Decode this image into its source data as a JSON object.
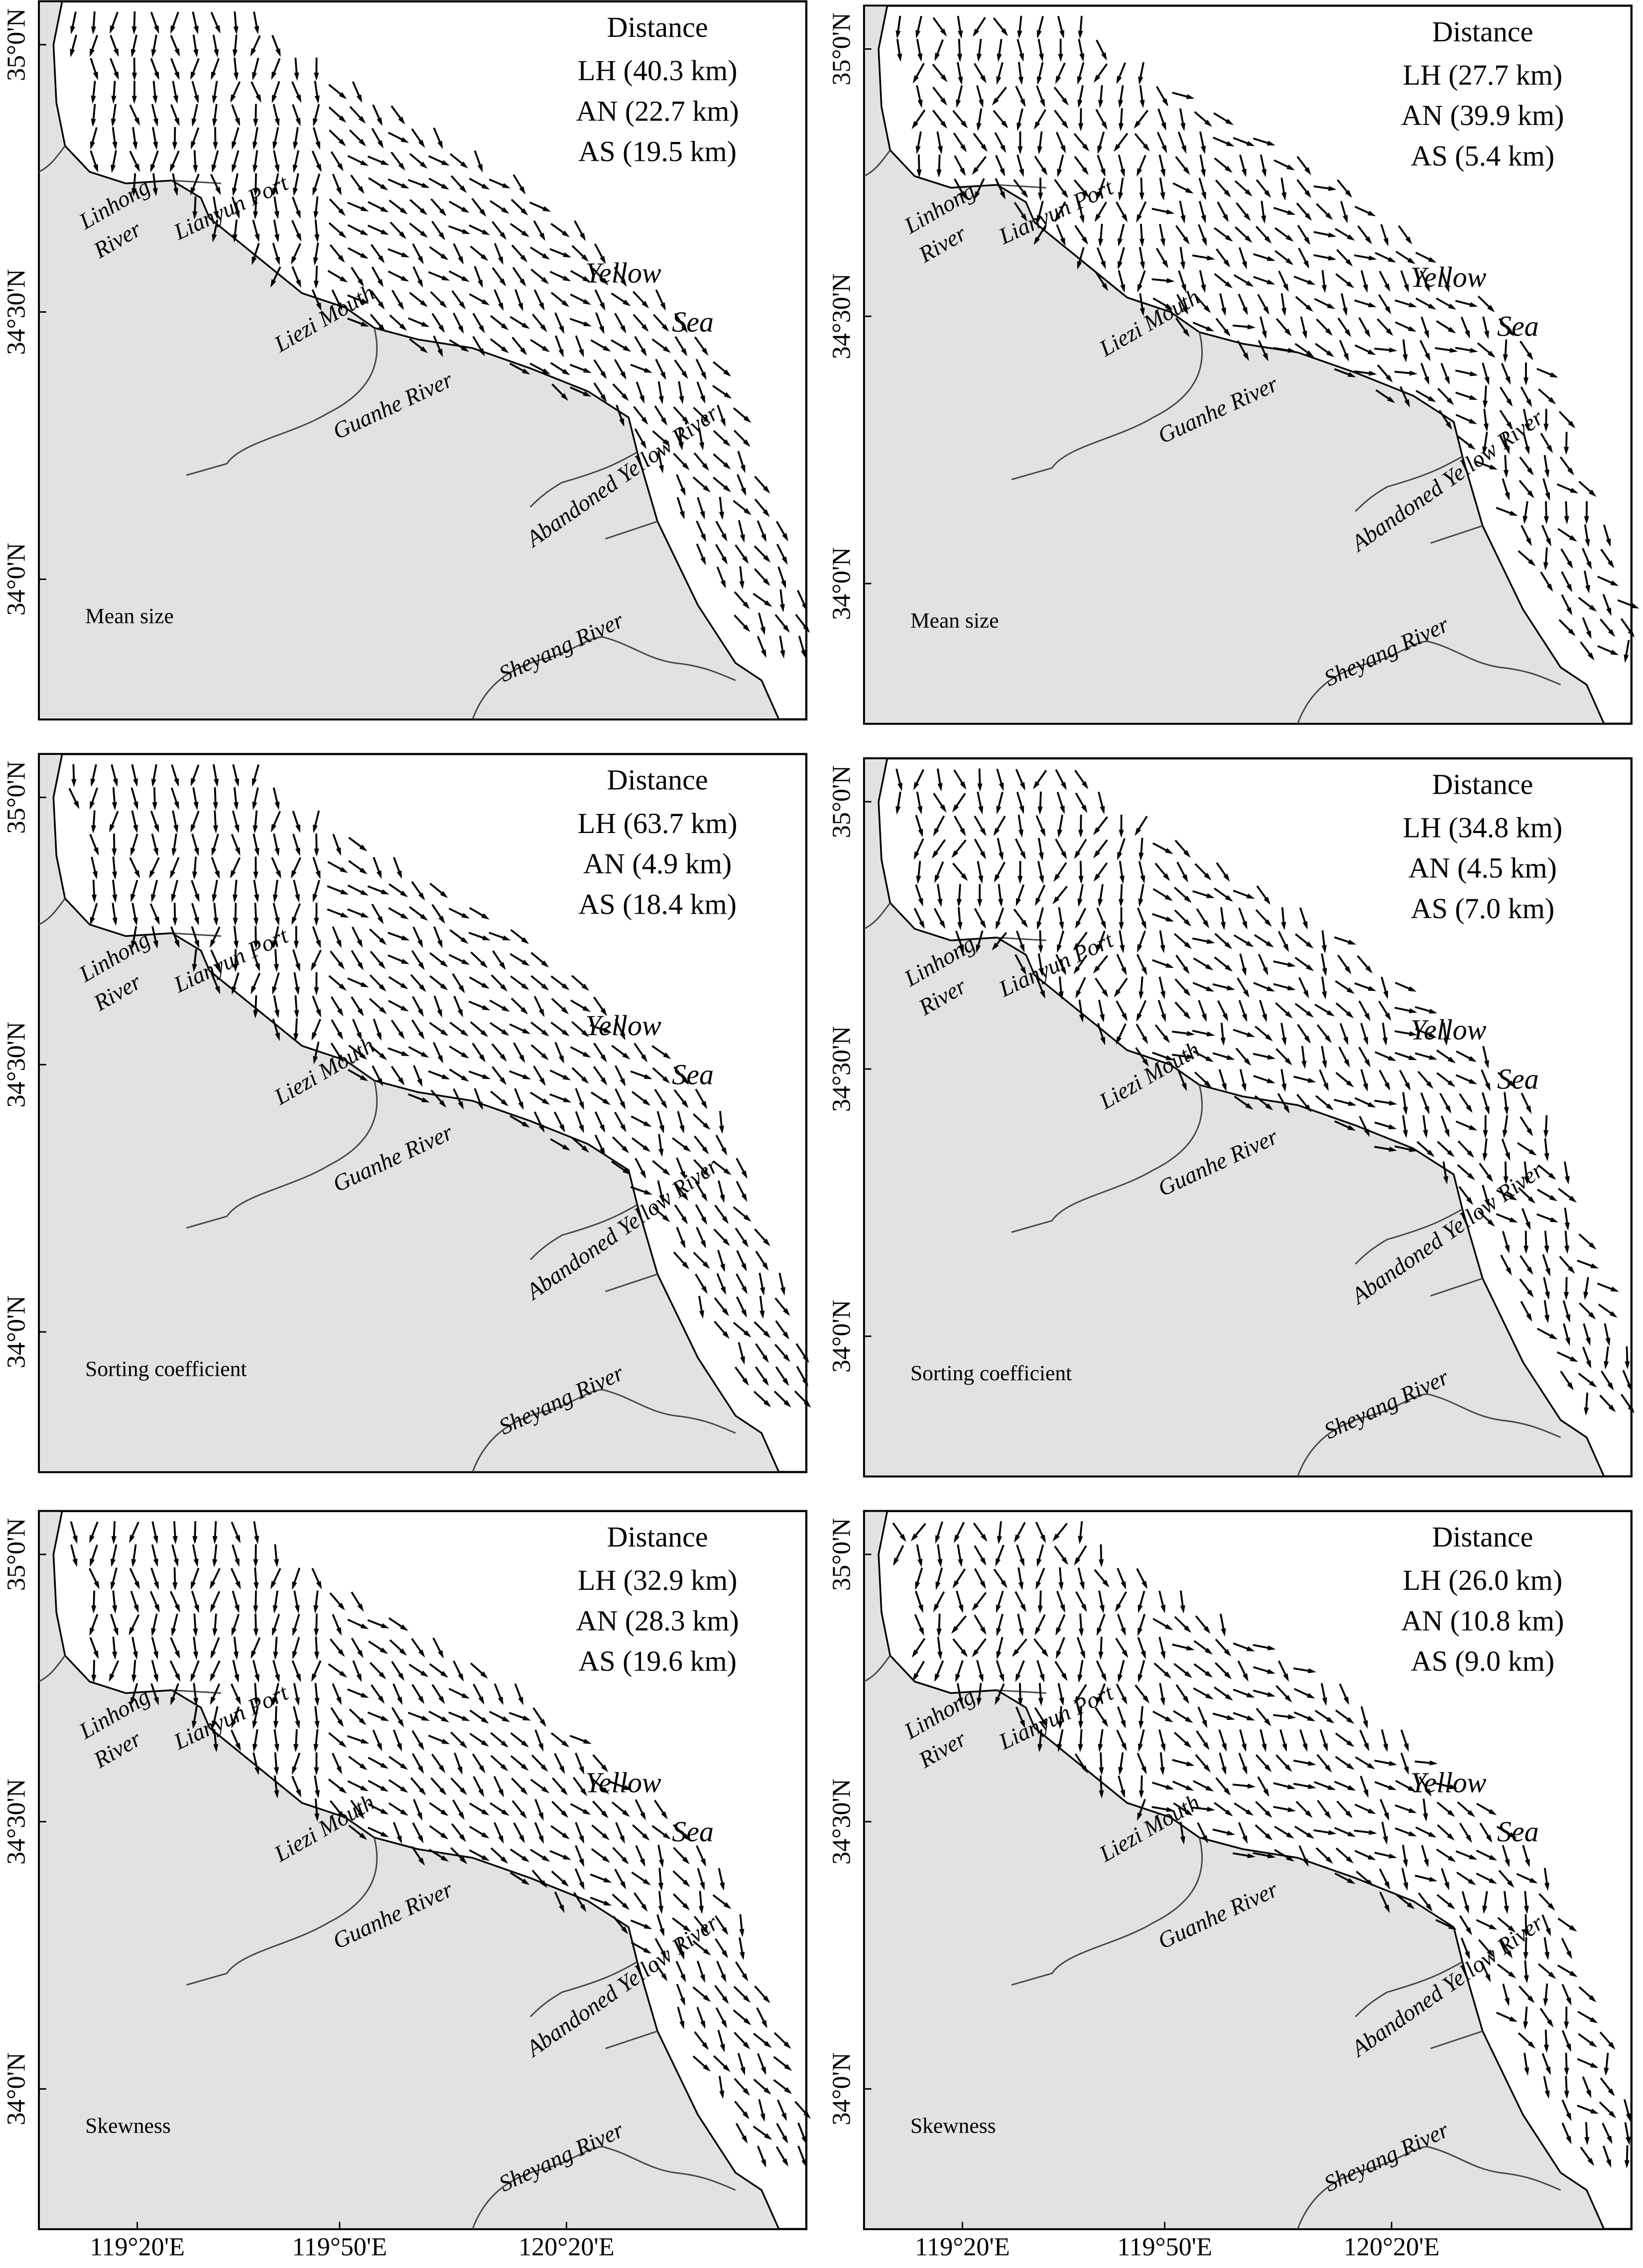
{
  "panels": [
    {
      "heading": "Distance",
      "distances": [
        "LH (40.3 km)",
        "AN (22.7 km)",
        "AS (19.5 km)"
      ],
      "parameter": "Mean size"
    },
    {
      "heading": "Distance",
      "distances": [
        "LH (27.7 km)",
        "AN (39.9 km)",
        "AS (5.4 km)"
      ],
      "parameter": "Mean size"
    },
    {
      "heading": "Distance",
      "distances": [
        "LH (63.7 km)",
        "AN (4.9 km)",
        "AS (18.4 km)"
      ],
      "parameter": "Sorting coefficient"
    },
    {
      "heading": "Distance",
      "distances": [
        "LH (34.8 km)",
        "AN (4.5 km)",
        "AS (7.0 km)"
      ],
      "parameter": "Sorting coefficient"
    },
    {
      "heading": "Distance",
      "distances": [
        "LH (32.9 km)",
        "AN (28.3 km)",
        "AS (19.6 km)"
      ],
      "parameter": "Skewness"
    },
    {
      "heading": "Distance",
      "distances": [
        "LH (26.0 km)",
        "AN (10.8 km)",
        "AS (9.0 km)"
      ],
      "parameter": "Skewness"
    }
  ],
  "place_names": [
    "Linhong",
    "River",
    "Lianyun Port",
    "Liezi Mouth",
    "Guanhe  River",
    "Abandoned Yellow  River",
    "Sheyang  River",
    "Yellow",
    "Sea"
  ],
  "lat_ticks": [
    "35°0'N",
    "34°30'N",
    "34°0'N"
  ],
  "lon_ticks": [
    "119°20'E",
    "119°50'E",
    "120°20'E"
  ]
}
